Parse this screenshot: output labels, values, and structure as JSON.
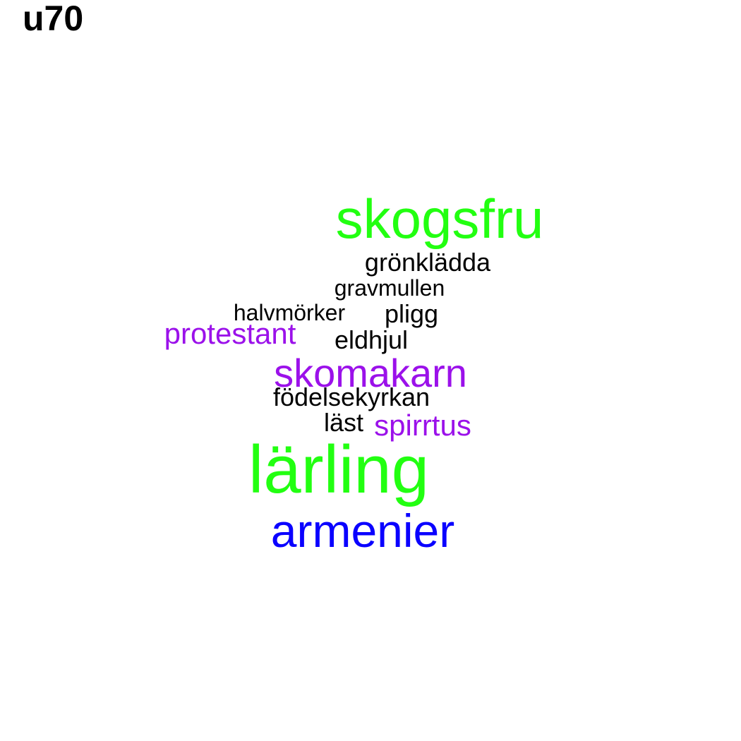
{
  "title": "u70",
  "colors": {
    "green": "#22ff11",
    "purple": "#9b11ea",
    "blue": "#0a00ff",
    "black": "#000000"
  },
  "words": [
    {
      "text": "skogsfru",
      "color": "#22ff11"
    },
    {
      "text": "grönklädda",
      "color": "#000000"
    },
    {
      "text": "gravmullen",
      "color": "#000000"
    },
    {
      "text": "halvmörker",
      "color": "#000000"
    },
    {
      "text": "pligg",
      "color": "#000000"
    },
    {
      "text": "protestant",
      "color": "#9b11ea"
    },
    {
      "text": "eldhjul",
      "color": "#000000"
    },
    {
      "text": "skomakarn",
      "color": "#9b11ea"
    },
    {
      "text": "födelsekyrkan",
      "color": "#000000"
    },
    {
      "text": "läst",
      "color": "#000000"
    },
    {
      "text": "spirrtus",
      "color": "#9b11ea"
    },
    {
      "text": "lärling",
      "color": "#22ff11"
    },
    {
      "text": "armenier",
      "color": "#0a00ff"
    }
  ]
}
